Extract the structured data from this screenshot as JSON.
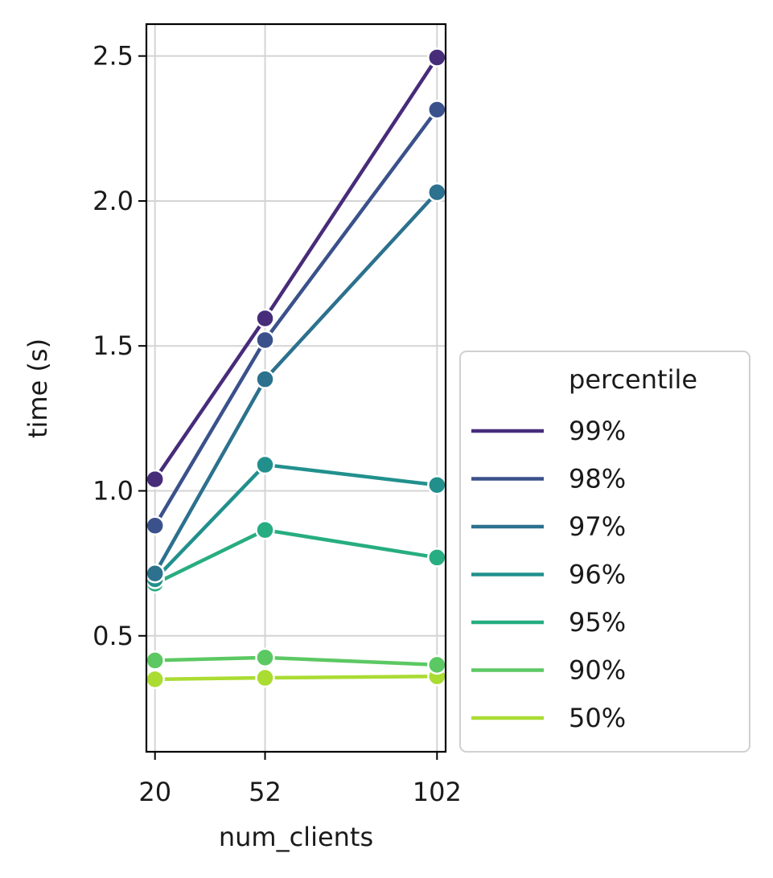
{
  "chart_data": {
    "type": "line",
    "xlabel": "num_clients",
    "ylabel": "time (s)",
    "x": [
      20,
      52,
      102
    ],
    "x_tick_labels": [
      "20",
      "52",
      "102"
    ],
    "xlim": [
      17.5,
      104.5
    ],
    "ylim": [
      0.1,
      2.61
    ],
    "y_ticks": [
      0.5,
      1.0,
      1.5,
      2.0,
      2.5
    ],
    "y_tick_labels": [
      "0.5",
      "1.0",
      "1.5",
      "2.0",
      "2.5"
    ],
    "grid": true,
    "legend_title": "percentile",
    "legend_placement": "outside-right-bottom",
    "series": [
      {
        "name": "99%",
        "color": "#472c7a",
        "values": [
          1.04,
          1.595,
          2.495
        ]
      },
      {
        "name": "98%",
        "color": "#3b518b",
        "values": [
          0.88,
          1.52,
          2.315
        ]
      },
      {
        "name": "97%",
        "color": "#2c718e",
        "values": [
          0.715,
          1.385,
          2.03
        ]
      },
      {
        "name": "96%",
        "color": "#21908d",
        "values": [
          0.695,
          1.09,
          1.02
        ]
      },
      {
        "name": "95%",
        "color": "#27ad81",
        "values": [
          0.68,
          0.865,
          0.77
        ]
      },
      {
        "name": "90%",
        "color": "#5cc863",
        "values": [
          0.415,
          0.425,
          0.4
        ]
      },
      {
        "name": "50%",
        "color": "#aadc32",
        "values": [
          0.35,
          0.355,
          0.36
        ]
      }
    ]
  }
}
